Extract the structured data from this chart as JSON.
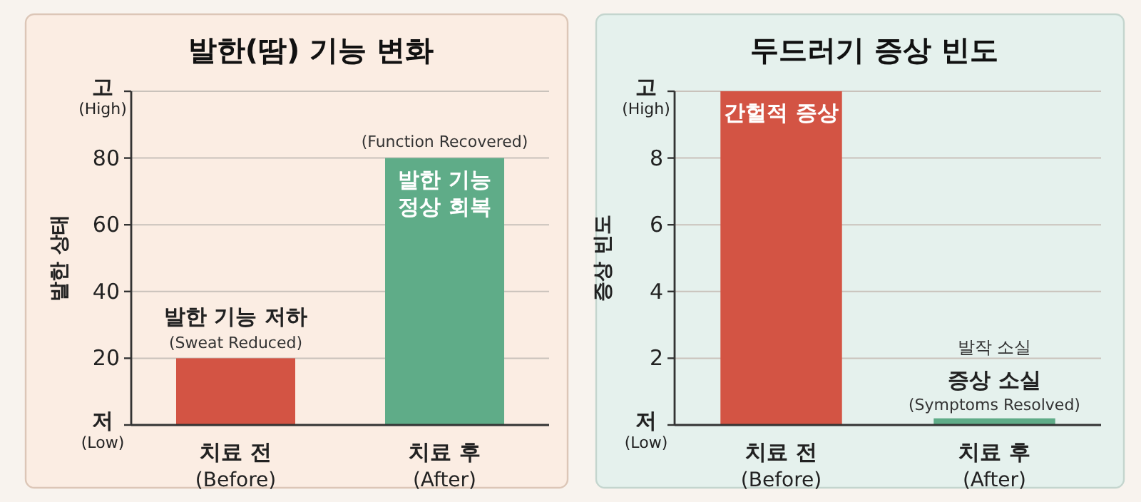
{
  "chart_data": [
    {
      "type": "bar",
      "title": "발한(땀) 기능 변화",
      "ylabel": "발한 상태",
      "categories": [
        "치료 전\n(Before)",
        "치료 후\n(After)"
      ],
      "values": [
        20,
        80
      ],
      "colors": [
        "#d35444",
        "#5fac88"
      ],
      "ylim": [
        0,
        100
      ],
      "yticks": [
        {
          "value": 0,
          "label": "저\n(Low)"
        },
        20,
        40,
        60,
        80,
        {
          "value": 100,
          "label": "고\n(High)"
        }
      ],
      "grid": "y",
      "annotations": [
        {
          "text": "발한 기능 저하",
          "x": "치료 전\n(Before)",
          "y": 20
        },
        {
          "text": "(Sweat Reduced)",
          "x": "치료 전\n(Before)",
          "y": 20
        },
        {
          "text": "(Function Recovered)",
          "x": "치료 후\n(After)",
          "y": 80
        },
        {
          "text": "발한 기능\n정상 회복",
          "x": "치료 후\n(After)",
          "y": 80
        }
      ]
    },
    {
      "type": "bar",
      "title": "두드러기 증상 빈도",
      "ylabel": "증상 빈도",
      "categories": [
        "치료 전\n(Before)",
        "치료 후\n(After)"
      ],
      "values": [
        10,
        0.2
      ],
      "colors": [
        "#d35444",
        "#5fac88"
      ],
      "ylim": [
        0,
        10
      ],
      "yticks": [
        {
          "value": 0,
          "label": "저\n(Low)"
        },
        2,
        4,
        6,
        8,
        {
          "value": 10,
          "label": "고\n(High)"
        }
      ],
      "grid": "y",
      "annotations": [
        {
          "text": "간헐적 증상",
          "x": "치료 전\n(Before)",
          "y": 10
        },
        "발작 소실",
        {
          "text": "증상 소실",
          "x": "치료 후\n(After)",
          "y": 0.2
        },
        {
          "text": "(Symptoms Resolved)",
          "x": "치료 후\n(After)",
          "y": 0.2
        }
      ]
    }
  ]
}
